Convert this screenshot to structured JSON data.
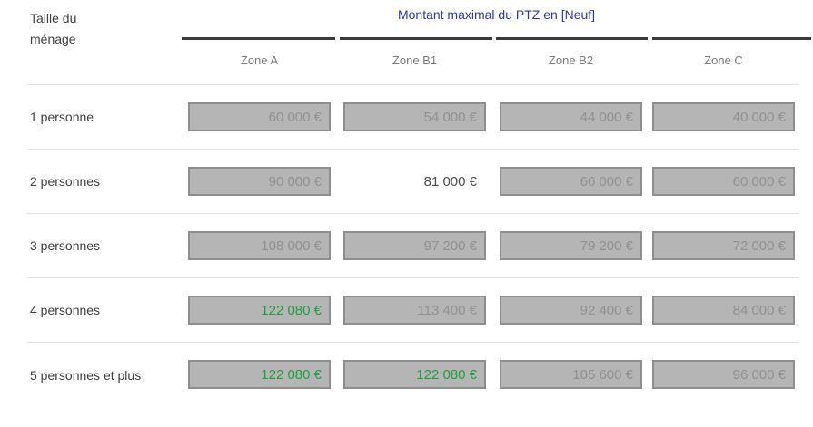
{
  "header": {
    "row_dimension_label_line1": "Taille du",
    "row_dimension_label_line2": "ménage",
    "title": "Montant maximal du PTZ en [Neuf]",
    "zones": [
      "Zone A",
      "Zone B1",
      "Zone B2",
      "Zone C"
    ]
  },
  "rows": [
    {
      "label": "1 personne",
      "cells": [
        {
          "value": "60 000 €",
          "style": "box"
        },
        {
          "value": "54 000 €",
          "style": "box"
        },
        {
          "value": "44 000 €",
          "style": "box"
        },
        {
          "value": "40 000 €",
          "style": "box"
        }
      ]
    },
    {
      "label": "2 personnes",
      "cells": [
        {
          "value": "90 000 €",
          "style": "box"
        },
        {
          "value": "81 000 €",
          "style": "plain"
        },
        {
          "value": "66 000 €",
          "style": "box"
        },
        {
          "value": "60 000 €",
          "style": "box"
        }
      ]
    },
    {
      "label": "3 personnes",
      "cells": [
        {
          "value": "108 000 €",
          "style": "box"
        },
        {
          "value": "97 200 €",
          "style": "box"
        },
        {
          "value": "79 200 €",
          "style": "box"
        },
        {
          "value": "72 000 €",
          "style": "box"
        }
      ]
    },
    {
      "label": "4 personnes",
      "cells": [
        {
          "value": "122 080 €",
          "style": "box green"
        },
        {
          "value": "113 400 €",
          "style": "box"
        },
        {
          "value": "92 400 €",
          "style": "box"
        },
        {
          "value": "84 000 €",
          "style": "box"
        }
      ]
    },
    {
      "label": "5 personnes et plus",
      "cells": [
        {
          "value": "122 080 €",
          "style": "box green"
        },
        {
          "value": "122 080 €",
          "style": "box green"
        },
        {
          "value": "105 600 €",
          "style": "box"
        },
        {
          "value": "96 000 €",
          "style": "box"
        }
      ]
    }
  ],
  "colors": {
    "title_blue": "#2d36b0",
    "highlight_green": "#1ca13c",
    "box_fill": "#b5b5b5",
    "box_border": "#8e8e8e",
    "box_text_gray": "#909090",
    "plain_text": "#4a4a4a",
    "separator": "#e2e2e2",
    "header_rule": "#3b3b3b"
  }
}
